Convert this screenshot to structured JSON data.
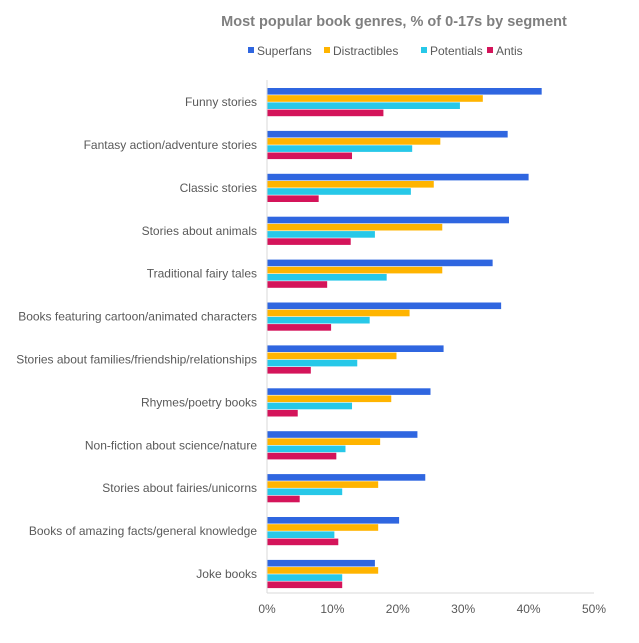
{
  "chart_data": {
    "type": "bar",
    "orientation": "horizontal",
    "title": "Most popular book genres, % of 0-17s by segment",
    "xlabel": "",
    "ylabel": "",
    "xlim": [
      0,
      50
    ],
    "x_ticks": [
      "0%",
      "10%",
      "20%",
      "30%",
      "40%",
      "50%"
    ],
    "legend_position": "top",
    "grid": false,
    "categories": [
      "Funny stories",
      "Fantasy action/adventure stories",
      "Classic stories",
      "Stories about animals",
      "Traditional fairy tales",
      "Books featuring cartoon/animated characters",
      "Stories about families/friendship/relationships",
      "Rhymes/poetry books",
      "Non-fiction about science/nature",
      "Stories about fairies/unicorns",
      "Books of amazing facts/general knowledge",
      "Joke books"
    ],
    "series": [
      {
        "name": "Superfans",
        "color": "#2f66e0",
        "values": [
          42,
          36.8,
          40,
          37,
          34.5,
          35.8,
          27,
          25,
          23,
          24.2,
          20.2,
          16.5
        ]
      },
      {
        "name": "Distractibles",
        "color": "#ffb400",
        "values": [
          33,
          26.5,
          25.5,
          26.8,
          26.8,
          21.8,
          19.8,
          19,
          17.3,
          17,
          17,
          17
        ]
      },
      {
        "name": "Potentials",
        "color": "#27c8e8",
        "values": [
          29.5,
          22.2,
          22,
          16.5,
          18.3,
          15.7,
          13.8,
          13,
          12,
          11.5,
          10.3,
          11.5
        ]
      },
      {
        "name": "Antis",
        "color": "#d4145a",
        "values": [
          17.8,
          13,
          7.9,
          12.8,
          9.2,
          9.8,
          6.7,
          4.7,
          10.6,
          5,
          10.9,
          11.5
        ]
      }
    ]
  }
}
